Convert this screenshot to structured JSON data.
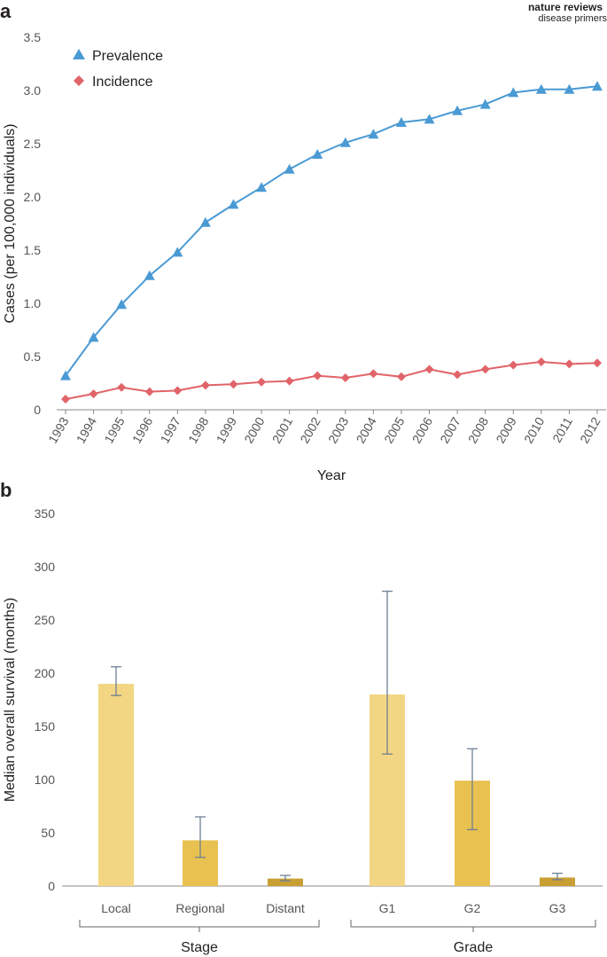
{
  "branding": {
    "line1": "nature reviews",
    "line2": "disease primers"
  },
  "chart_data": [
    {
      "panel": "a",
      "type": "line",
      "xlabel": "Year",
      "ylabel": "Cases (per 100,000 individuals)",
      "ylim": [
        0,
        3.5
      ],
      "yticks": [
        "0",
        "0.5",
        "1.0",
        "1.5",
        "2.0",
        "2.5",
        "3.0",
        "3.5"
      ],
      "x": [
        "1993",
        "1994",
        "1995",
        "1996",
        "1997",
        "1998",
        "1999",
        "2000",
        "2001",
        "2002",
        "2003",
        "2004",
        "2005",
        "2006",
        "2007",
        "2008",
        "2009",
        "2010",
        "2011",
        "2012"
      ],
      "legend_position": "top-left",
      "series": [
        {
          "name": "Prevalence",
          "marker": "triangle",
          "color": "#4a9ad4",
          "values": [
            0.32,
            0.68,
            0.99,
            1.26,
            1.48,
            1.76,
            1.93,
            2.09,
            2.26,
            2.4,
            2.51,
            2.59,
            2.7,
            2.73,
            2.81,
            2.87,
            2.98,
            3.01,
            3.01,
            3.04
          ]
        },
        {
          "name": "Incidence",
          "marker": "diamond",
          "color": "#e06469",
          "values": [
            0.1,
            0.15,
            0.21,
            0.17,
            0.18,
            0.23,
            0.24,
            0.26,
            0.27,
            0.32,
            0.3,
            0.34,
            0.31,
            0.38,
            0.33,
            0.38,
            0.42,
            0.45,
            0.43,
            0.44
          ]
        }
      ]
    },
    {
      "panel": "b",
      "type": "bar",
      "ylabel": "Median overall survival (months)",
      "ylim": [
        0,
        350
      ],
      "yticks": [
        "0",
        "50",
        "100",
        "150",
        "200",
        "250",
        "300",
        "350"
      ],
      "categories": [
        "Local",
        "Regional",
        "Distant",
        "G1",
        "G2",
        "G3"
      ],
      "values": [
        190,
        43,
        7,
        180,
        99,
        8
      ],
      "error_low": [
        179,
        27,
        5,
        124,
        53,
        6
      ],
      "error_high": [
        206,
        65,
        10,
        277,
        129,
        12
      ],
      "colors": [
        "#f3d683",
        "#e8c150",
        "#c99e33",
        "#f3d683",
        "#e8c150",
        "#c99e33"
      ],
      "groups": [
        {
          "label": "Stage",
          "categories": [
            "Local",
            "Regional",
            "Distant"
          ]
        },
        {
          "label": "Grade",
          "categories": [
            "G1",
            "G2",
            "G3"
          ]
        }
      ]
    }
  ]
}
